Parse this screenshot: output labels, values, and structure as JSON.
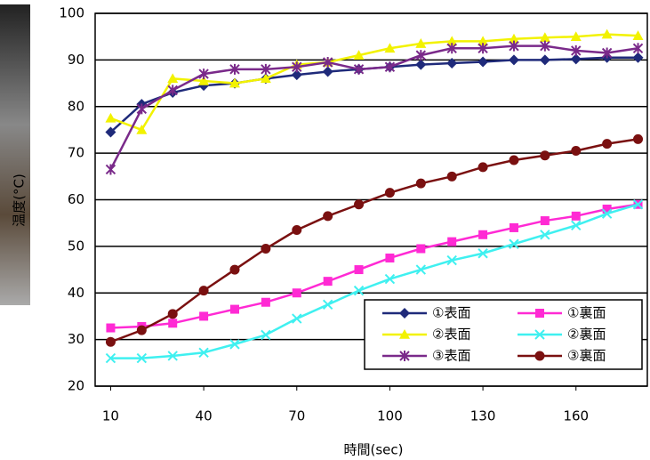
{
  "chart_data": {
    "type": "line",
    "x_label": "時間(sec)",
    "y_label": "温度(°C)",
    "x": [
      10,
      20,
      30,
      40,
      50,
      60,
      70,
      80,
      90,
      100,
      110,
      120,
      130,
      140,
      150,
      160,
      170,
      180
    ],
    "series": [
      {
        "name": "①表面",
        "color": "#1f2a7a",
        "marker": "diamond",
        "values": [
          74.5,
          80.5,
          83,
          84.5,
          85,
          86,
          86.8,
          87.5,
          88,
          88.5,
          89,
          89.3,
          89.6,
          90,
          90,
          90.2,
          90.5,
          90.5
        ]
      },
      {
        "name": "②表面",
        "color": "#f2f200",
        "marker": "triangle",
        "values": [
          77.5,
          75,
          86,
          85.5,
          85,
          86,
          89,
          89.5,
          91,
          92.5,
          93.5,
          94,
          94,
          94.5,
          94.8,
          95,
          95.5,
          95.2
        ]
      },
      {
        "name": "③表面",
        "color": "#7a2a8a",
        "marker": "star",
        "values": [
          66.5,
          79.5,
          83.5,
          87,
          88,
          88,
          88.5,
          89.5,
          88,
          88.5,
          91,
          92.5,
          92.5,
          93,
          93,
          92,
          91.5,
          92.5
        ]
      },
      {
        "name": "①裏面",
        "color": "#ff2ad4",
        "marker": "square",
        "values": [
          32.5,
          32.8,
          33.5,
          35,
          36.5,
          38,
          40,
          42.5,
          45,
          47.5,
          49.5,
          51,
          52.5,
          54,
          55.5,
          56.5,
          58,
          59
        ]
      },
      {
        "name": "②裏面",
        "color": "#3ff0f0",
        "marker": "cross",
        "values": [
          26,
          26,
          26.5,
          27.2,
          29,
          31,
          34.5,
          37.5,
          40.5,
          43,
          45,
          47,
          48.5,
          50.5,
          52.5,
          54.5,
          57,
          59
        ]
      },
      {
        "name": "③裏面",
        "color": "#7a1010",
        "marker": "circle",
        "values": [
          29.5,
          32,
          35.5,
          40.5,
          45,
          49.5,
          53.5,
          56.5,
          59,
          61.5,
          63.5,
          65,
          67,
          68.5,
          69.5,
          70.5,
          72,
          73
        ]
      }
    ],
    "xlim": [
      5,
      183
    ],
    "xticks": [
      10,
      40,
      70,
      100,
      130,
      160
    ],
    "ylim": [
      20,
      100
    ],
    "yticks": [
      20,
      30,
      40,
      50,
      60,
      70,
      80,
      90,
      100
    ],
    "grid": "y"
  }
}
